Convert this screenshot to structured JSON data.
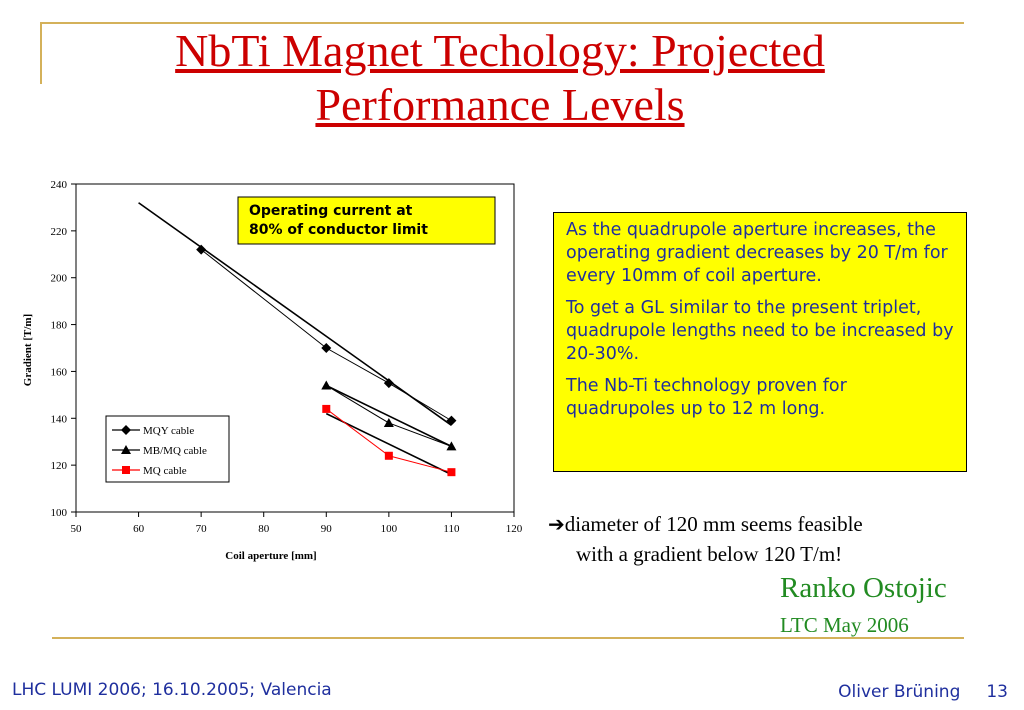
{
  "slide": {
    "title": "NbTi Magnet Techology: Projected Performance Levels",
    "note_paragraphs": [
      "As the quadrupole aperture increases, the operating gradient decreases by 20 T/m for every 10mm of coil aperture.",
      "To get a GL similar to the present triplet, quadrupole lengths need to be increased by 20-30%.",
      "The Nb-Ti technology proven for quadrupoles up to 12 m long."
    ],
    "conclusion_arrow": "➔",
    "conclusion_line1": "diameter of 120 mm seems feasible",
    "conclusion_line2": "with a gradient below 120 T/m!",
    "author": "Ranko Ostojic",
    "meeting": "LTC May 2006",
    "footer_left": "LHC LUMI 2006; 16.10.2005; Valencia",
    "footer_presenter": "Oliver Brüning",
    "page_number": "13",
    "colors": {
      "title": "#cc0000",
      "note_bg": "#ffff00",
      "note_text": "#1f2f9e",
      "author": "#228b22",
      "rule": "#d4b15a"
    }
  },
  "chart_data": {
    "type": "scatter",
    "title": "",
    "annotation": "Operating current at 80% of conductor limit",
    "xlabel": "Coil aperture [mm]",
    "ylabel": "Gradient [T/m]",
    "xlim": [
      50,
      120
    ],
    "ylim": [
      100,
      240
    ],
    "xticks": [
      50,
      60,
      70,
      80,
      90,
      100,
      110,
      120
    ],
    "yticks": [
      100,
      120,
      140,
      160,
      180,
      200,
      220,
      240
    ],
    "legend_position": "bottom-left",
    "series": [
      {
        "name": "MQY cable",
        "marker": "diamond",
        "color": "#000000",
        "x": [
          70,
          90,
          100,
          110
        ],
        "y": [
          212,
          170,
          155,
          139
        ]
      },
      {
        "name": "MB/MQ cable",
        "marker": "triangle",
        "color": "#000000",
        "x": [
          90,
          100,
          110
        ],
        "y": [
          154,
          138,
          128
        ]
      },
      {
        "name": "MQ cable",
        "marker": "square",
        "color": "#ff0000",
        "x": [
          90,
          100,
          110
        ],
        "y": [
          144,
          124,
          117
        ]
      }
    ],
    "trendlines": [
      {
        "x": [
          60,
          110
        ],
        "y": [
          232,
          137
        ]
      },
      {
        "x": [
          90,
          110
        ],
        "y": [
          154,
          128
        ]
      },
      {
        "x": [
          90,
          110
        ],
        "y": [
          142,
          116
        ]
      }
    ]
  }
}
